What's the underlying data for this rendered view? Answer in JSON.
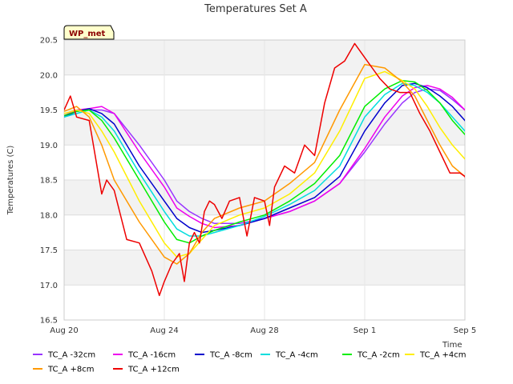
{
  "chart_data": {
    "type": "line",
    "title": "Temperatures Set A",
    "xlabel": "Time",
    "ylabel": "Temperatures (C)",
    "badge": "WP_met",
    "xlim": [
      0,
      16
    ],
    "ylim": [
      16.5,
      20.5
    ],
    "x_ticks": [
      {
        "x": 0,
        "label": "Aug 20"
      },
      {
        "x": 4,
        "label": "Aug 24"
      },
      {
        "x": 8,
        "label": "Aug 28"
      },
      {
        "x": 12,
        "label": "Sep 1"
      },
      {
        "x": 16,
        "label": "Sep 5"
      }
    ],
    "y_ticks": [
      16.5,
      17.0,
      17.5,
      18.0,
      18.5,
      19.0,
      19.5,
      20.0,
      20.5
    ],
    "grid": true,
    "legend_position": "bottom",
    "x_unit": "days since Aug 20",
    "series": [
      {
        "name": "TC_A -32cm",
        "color": "#9933ff",
        "x": [
          0,
          0.5,
          1,
          1.5,
          2,
          3,
          4,
          4.5,
          5,
          5.5,
          6,
          7,
          8,
          9,
          10,
          11,
          12,
          12.8,
          13.5,
          14,
          14.5,
          15,
          15.5,
          16,
          16.5,
          17
        ],
        "y": [
          19.42,
          19.48,
          19.5,
          19.5,
          19.45,
          19.0,
          18.5,
          18.2,
          18.05,
          17.95,
          17.88,
          17.88,
          17.95,
          18.05,
          18.2,
          18.45,
          18.9,
          19.3,
          19.6,
          19.75,
          19.8,
          19.78,
          19.65,
          19.5,
          19.3,
          19.1
        ]
      },
      {
        "name": "TC_A -16cm",
        "color": "#ee00ee",
        "x": [
          0,
          0.5,
          1,
          1.5,
          2,
          3,
          4,
          4.5,
          5,
          5.5,
          6,
          7,
          8,
          9,
          10,
          11,
          12,
          12.8,
          13.5,
          14,
          14.5,
          15,
          15.5,
          16,
          16.5,
          17
        ],
        "y": [
          19.42,
          19.5,
          19.52,
          19.55,
          19.45,
          18.9,
          18.4,
          18.1,
          17.98,
          17.88,
          17.82,
          17.85,
          17.95,
          18.05,
          18.2,
          18.45,
          18.95,
          19.4,
          19.7,
          19.82,
          19.85,
          19.8,
          19.68,
          19.5,
          19.3,
          19.1
        ]
      },
      {
        "name": "TC_A -8cm",
        "color": "#0000cc",
        "x": [
          0,
          0.5,
          1,
          1.5,
          2,
          3,
          4,
          4.5,
          5,
          5.5,
          6,
          7,
          8,
          9,
          10,
          11,
          12,
          12.8,
          13.5,
          14,
          14.5,
          15,
          15.5,
          16,
          16.5,
          17
        ],
        "y": [
          19.4,
          19.48,
          19.52,
          19.45,
          19.3,
          18.7,
          18.2,
          17.95,
          17.82,
          17.75,
          17.78,
          17.85,
          17.95,
          18.1,
          18.25,
          18.55,
          19.2,
          19.6,
          19.85,
          19.88,
          19.82,
          19.7,
          19.55,
          19.35,
          19.15,
          18.95
        ]
      },
      {
        "name": "TC_A -4cm",
        "color": "#00dddd",
        "x": [
          0,
          0.5,
          1,
          1.5,
          2,
          3,
          4,
          4.5,
          5,
          5.5,
          6,
          7,
          8,
          9,
          10,
          11,
          12,
          12.8,
          13.5,
          14,
          14.5,
          15,
          15.5,
          16,
          16.5,
          17
        ],
        "y": [
          19.4,
          19.45,
          19.5,
          19.4,
          19.2,
          18.6,
          18.05,
          17.8,
          17.7,
          17.7,
          17.75,
          17.85,
          17.98,
          18.15,
          18.35,
          18.7,
          19.4,
          19.72,
          19.88,
          19.85,
          19.75,
          19.6,
          19.4,
          19.2,
          19.0,
          18.8
        ]
      },
      {
        "name": "TC_A -2cm",
        "color": "#00ee00",
        "x": [
          0,
          0.5,
          1,
          1.5,
          2,
          3,
          4,
          4.5,
          5,
          5.5,
          6,
          7,
          8,
          9,
          10,
          11,
          12,
          12.8,
          13.5,
          14,
          14.5,
          15,
          15.5,
          16,
          16.5,
          17
        ],
        "y": [
          19.42,
          19.48,
          19.5,
          19.35,
          19.1,
          18.5,
          17.9,
          17.65,
          17.6,
          17.7,
          17.78,
          17.9,
          18.0,
          18.2,
          18.45,
          18.85,
          19.55,
          19.8,
          19.92,
          19.9,
          19.78,
          19.6,
          19.35,
          19.15,
          18.95,
          18.75
        ]
      },
      {
        "name": "TC_A +4cm",
        "color": "#ffee00",
        "x": [
          0,
          0.5,
          1,
          1.5,
          2,
          3,
          4,
          4.5,
          5,
          5.5,
          6,
          7,
          8,
          9,
          10,
          11,
          12,
          12.8,
          13.5,
          14,
          14.5,
          15,
          15.5,
          16,
          16.5,
          17
        ],
        "y": [
          19.45,
          19.5,
          19.45,
          19.2,
          18.9,
          18.2,
          17.6,
          17.4,
          17.45,
          17.65,
          17.85,
          18.0,
          18.1,
          18.3,
          18.6,
          19.2,
          19.95,
          20.05,
          19.92,
          19.8,
          19.55,
          19.25,
          19.0,
          18.8,
          18.6,
          18.55
        ]
      },
      {
        "name": "TC_A +8cm",
        "color": "#ff9900",
        "x": [
          0,
          0.5,
          1,
          1.5,
          2,
          3,
          4,
          4.5,
          5,
          5.5,
          6,
          7,
          8,
          9,
          10,
          11,
          12,
          12.8,
          13.5,
          14,
          14.5,
          15,
          15.5,
          16,
          16.5,
          17
        ],
        "y": [
          19.48,
          19.55,
          19.4,
          19.0,
          18.5,
          17.9,
          17.4,
          17.3,
          17.45,
          17.75,
          17.95,
          18.1,
          18.2,
          18.45,
          18.75,
          19.5,
          20.15,
          20.1,
          19.9,
          19.7,
          19.35,
          19.0,
          18.7,
          18.55,
          18.45,
          18.42
        ]
      },
      {
        "name": "TC_A +12cm",
        "color": "#ee0000",
        "x": [
          0,
          0.25,
          0.5,
          1,
          1.5,
          1.7,
          2,
          2.5,
          3,
          3.5,
          3.8,
          4,
          4.3,
          4.6,
          4.8,
          5,
          5.2,
          5.4,
          5.6,
          5.8,
          6,
          6.3,
          6.6,
          7,
          7.3,
          7.6,
          8,
          8.2,
          8.4,
          8.8,
          9.2,
          9.6,
          10,
          10.4,
          10.8,
          11.2,
          11.6,
          12,
          12.3,
          12.6,
          13,
          13.4,
          13.8,
          14.2,
          14.6,
          15,
          15.4,
          15.8,
          16,
          16.4,
          16.7,
          17
        ],
        "y": [
          19.5,
          19.7,
          19.4,
          19.35,
          18.3,
          18.5,
          18.35,
          17.65,
          17.6,
          17.2,
          16.85,
          17.05,
          17.3,
          17.45,
          17.05,
          17.6,
          17.75,
          17.6,
          18.05,
          18.2,
          18.15,
          17.95,
          18.2,
          18.25,
          17.7,
          18.25,
          18.2,
          17.85,
          18.4,
          18.7,
          18.6,
          19.0,
          18.85,
          19.6,
          20.1,
          20.2,
          20.45,
          20.25,
          20.1,
          19.95,
          19.8,
          19.75,
          19.75,
          19.45,
          19.2,
          18.9,
          18.6,
          18.6,
          18.55,
          18.15,
          18.2,
          18.25
        ]
      }
    ]
  }
}
